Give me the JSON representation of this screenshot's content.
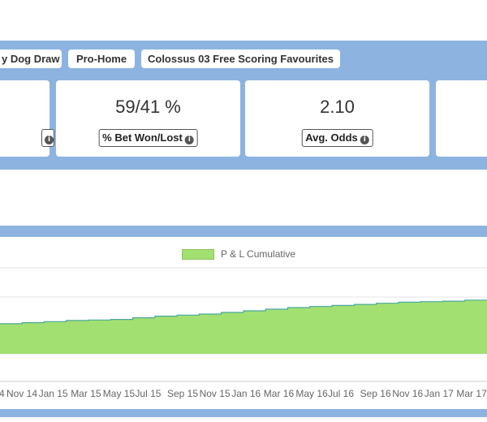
{
  "tags": [
    "y Dog Draw",
    "Pro-Home",
    "Colossus 03 Free Scoring Favourites"
  ],
  "stats": [
    {
      "value": "",
      "label": ""
    },
    {
      "value": "59/41 %",
      "label": "% Bet Won/Lost"
    },
    {
      "value": "2.10",
      "label": "Avg. Odds"
    },
    {
      "value": "",
      "label": ""
    }
  ],
  "colors": {
    "band": "#8db4e0",
    "area_fill": "#a3e072",
    "area_line": "#4aa89a"
  },
  "chart_data": {
    "type": "area",
    "legend": [
      "P & L Cumulative"
    ],
    "legend_position": "top-center",
    "x_tick_labels": [
      "4",
      "Nov 14",
      "Jan 15",
      "Mar 15",
      "May 15",
      "Jul 15",
      "Sep 15",
      "Nov 15",
      "Jan 16",
      "Mar 16",
      "May 16",
      "Jul 16",
      "Sep 16",
      "Nov 16",
      "Jan 17",
      "Mar 17"
    ],
    "series": [
      {
        "name": "P & L Cumulative",
        "values": [
          0.56,
          0.58,
          0.6,
          0.62,
          0.63,
          0.64,
          0.67,
          0.7,
          0.72,
          0.74,
          0.77,
          0.8,
          0.83,
          0.86,
          0.88,
          0.9,
          0.92,
          0.94,
          0.96,
          0.97,
          0.98,
          1.0
        ]
      }
    ],
    "ylim": [
      0,
      1.6
    ],
    "grid": true
  }
}
